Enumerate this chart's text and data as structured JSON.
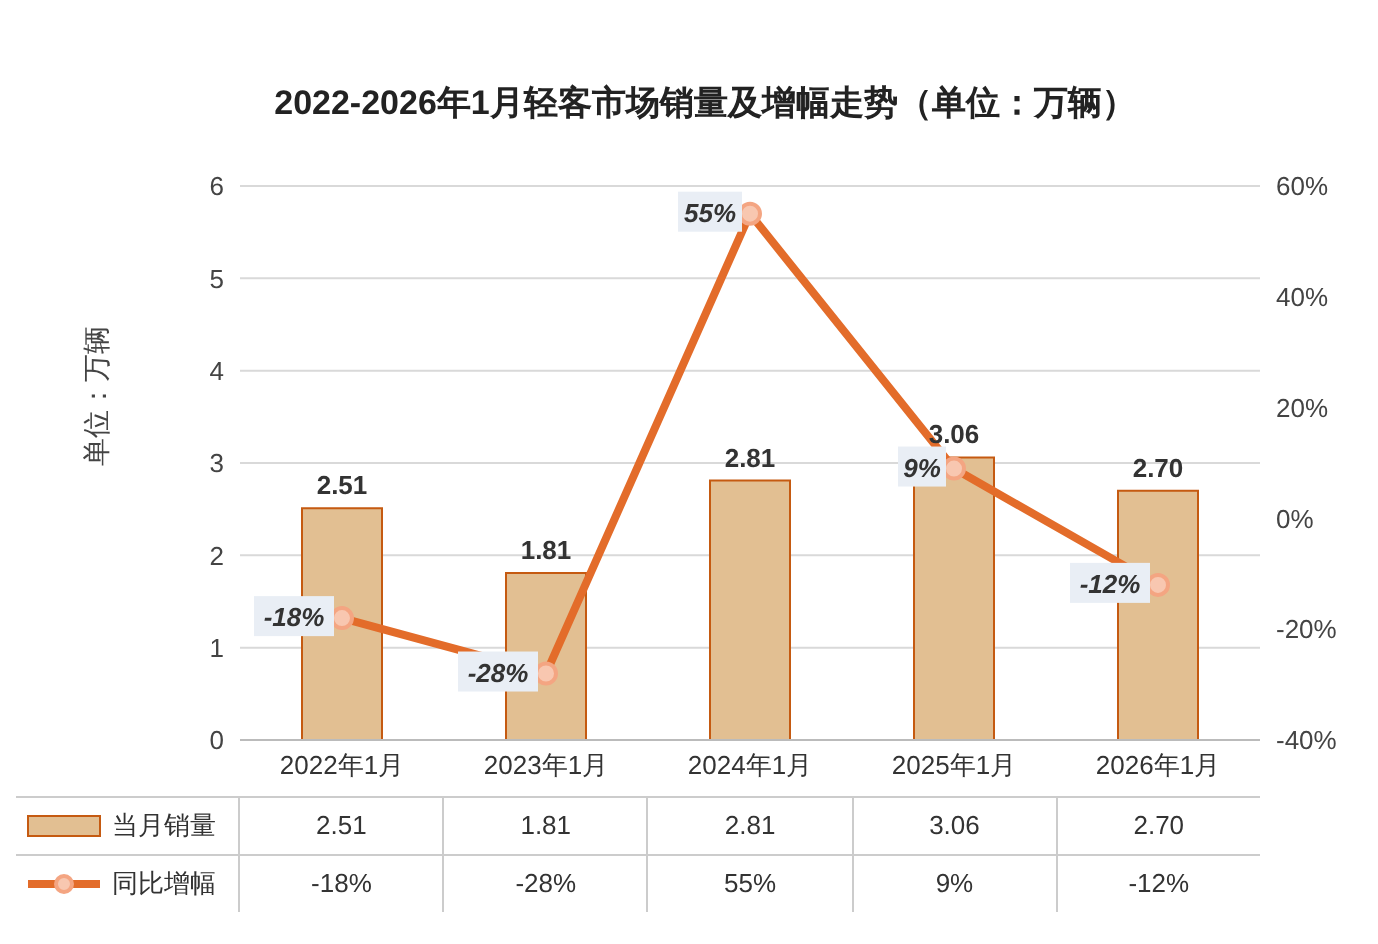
{
  "chart_data": {
    "type": "bar",
    "title": "2022-2026年1月轻客市场销量及增幅走势（单位：万辆）",
    "ylabel": "单位：万辆",
    "categories": [
      "2022年1月",
      "2023年1月",
      "2024年1月",
      "2025年1月",
      "2026年1月"
    ],
    "series": [
      {
        "name": "当月销量",
        "color": "#e2bf92",
        "values": [
          2.51,
          1.81,
          2.81,
          3.06,
          2.7
        ],
        "value_labels": [
          "2.51",
          "1.81",
          "2.81",
          "3.06",
          "2.70"
        ]
      },
      {
        "name": "同比增幅",
        "type": "line",
        "axis": "y2",
        "color": "#e36c2a",
        "values": [
          -18,
          -28,
          55,
          9,
          -12
        ],
        "value_labels": [
          "-18%",
          "-28%",
          "55%",
          "9%",
          "-12%"
        ]
      }
    ],
    "ylim": [
      0,
      6
    ],
    "yticks": [
      0,
      1,
      2,
      3,
      4,
      5,
      6
    ],
    "y2lim": [
      -40,
      60
    ],
    "y2ticks": [
      {
        "value": -40,
        "label": "-40%"
      },
      {
        "value": -20,
        "label": "-20%"
      },
      {
        "value": 0,
        "label": "0%"
      },
      {
        "value": 20,
        "label": "20%"
      },
      {
        "value": 40,
        "label": "40%"
      },
      {
        "value": 60,
        "label": "60%"
      }
    ],
    "grid": "y",
    "legend": "bottom",
    "marker": "circle",
    "line_style": "solid"
  }
}
